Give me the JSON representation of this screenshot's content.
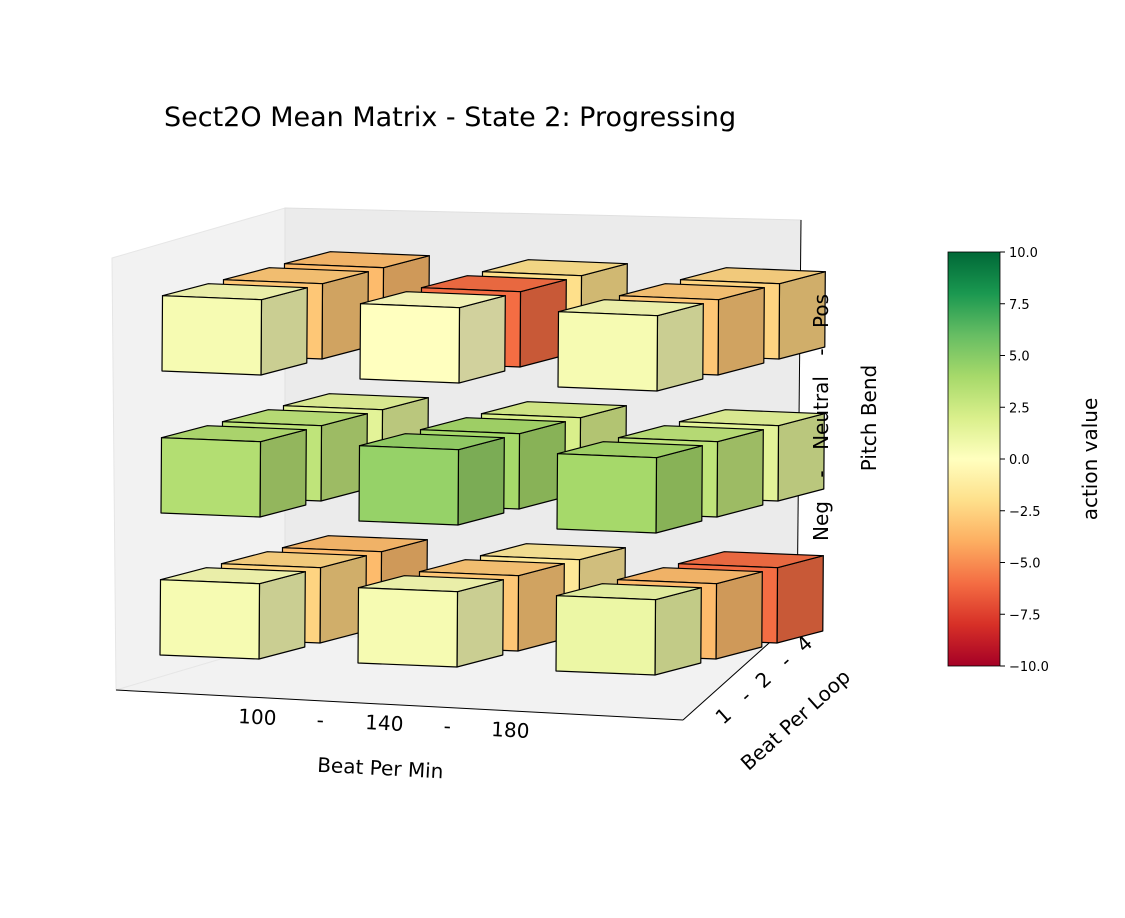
{
  "chart_data": {
    "type": "bar3d",
    "title": "Sect2O Mean Matrix - State 2: Progressing",
    "xlabel": "Beat Per Min",
    "ylabel": "Beat Per Loop",
    "zlabel": "Pitch Bend",
    "x_ticks": [
      "100",
      "-",
      "140",
      "-",
      "180"
    ],
    "y_ticks": [
      "1",
      "-",
      "2",
      "-",
      "4"
    ],
    "z_ticks": [
      "Neg",
      "-",
      "Neutral",
      "-",
      "Pos"
    ],
    "x_categories": [
      "100",
      "140",
      "180"
    ],
    "y_categories": [
      "1",
      "2",
      "4"
    ],
    "z_categories": [
      "Neg",
      "Neutral",
      "Pos"
    ],
    "colorbar": {
      "label": "action value",
      "range": [
        -10,
        10
      ],
      "ticks": [
        "10.0",
        "7.5",
        "5.0",
        "2.5",
        "0.0",
        "−2.5",
        "−5.0",
        "−7.5",
        "−10.0"
      ],
      "colormap": "RdYlGn"
    },
    "values": {
      "Neg": [
        [
          0.5,
          -2.5,
          -3.5
        ],
        [
          0.5,
          -3.0,
          -1.5
        ],
        [
          1.0,
          -3.5,
          -6.0
        ]
      ],
      "Neutral": [
        [
          3.5,
          3.0,
          1.5
        ],
        [
          4.5,
          4.0,
          2.0
        ],
        [
          4.0,
          3.0,
          1.5
        ]
      ],
      "Pos": [
        [
          0.5,
          -3.0,
          -3.5
        ],
        [
          0.0,
          -6.0,
          -2.0
        ],
        [
          0.5,
          -3.0,
          -2.5
        ]
      ]
    },
    "values_layout": "values[pitch][bpm_index][loop_index]"
  }
}
